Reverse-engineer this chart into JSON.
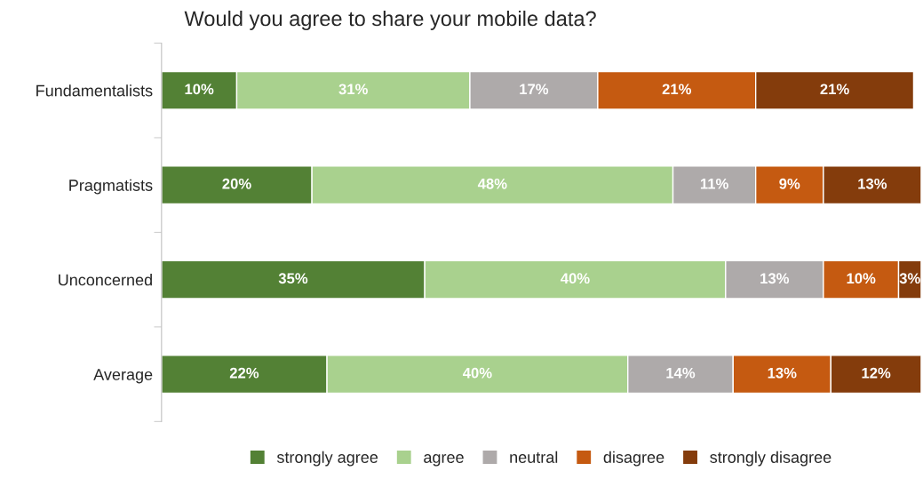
{
  "chart_data": {
    "type": "bar",
    "orientation": "horizontal",
    "stacked": true,
    "title": "Would you agree to share your mobile data?",
    "categories": [
      "Fundamentalists",
      "Pragmatists",
      "Unconcerned",
      "Average"
    ],
    "series": [
      {
        "name": "strongly agree",
        "color": "#538135",
        "values": [
          10,
          20,
          35,
          22
        ],
        "value_labels": [
          "10%",
          "20%",
          "35%",
          "22%"
        ]
      },
      {
        "name": "agree",
        "color": "#a9d18e",
        "values": [
          31,
          48,
          40,
          40
        ],
        "value_labels": [
          "31%",
          "48%",
          "40%",
          "40%"
        ]
      },
      {
        "name": "neutral",
        "color": "#aeaaaa",
        "values": [
          17,
          11,
          13,
          14
        ],
        "value_labels": [
          "17%",
          "11%",
          "13%",
          "14%"
        ]
      },
      {
        "name": "disagree",
        "color": "#c55a11",
        "values": [
          21,
          9,
          10,
          13
        ],
        "value_labels": [
          "21%",
          "9%",
          "10%",
          "13%"
        ]
      },
      {
        "name": "strongly disagree",
        "color": "#843c0c",
        "values": [
          21,
          13,
          3,
          12
        ],
        "value_labels": [
          "21%",
          "13%",
          "3%",
          "12%"
        ]
      }
    ],
    "xlim": [
      0,
      101
    ],
    "tick_labels": "y",
    "grid": false,
    "legend": "bottom"
  }
}
